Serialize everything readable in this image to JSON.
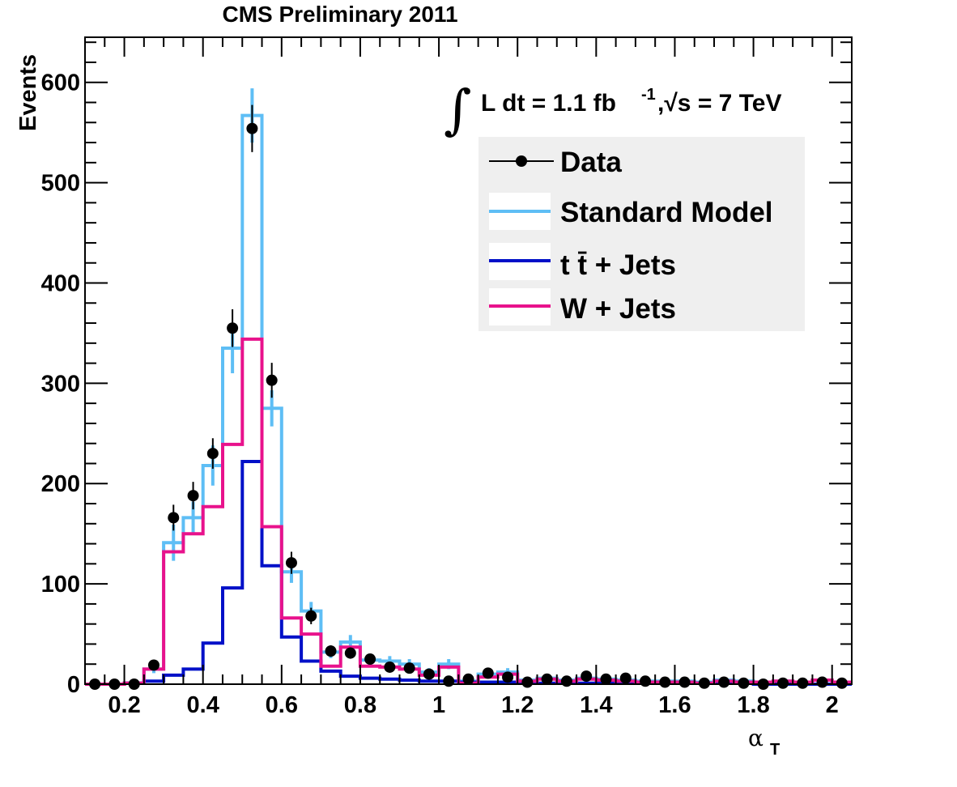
{
  "chart_data": {
    "type": "histogram",
    "title": "CMS Preliminary 2011",
    "xlabel": "α",
    "xlabel_sub": "T",
    "ylabel": "Events",
    "xlim": [
      0.1,
      2.05
    ],
    "ylim": [
      0,
      645
    ],
    "x_ticks": [
      "0.2",
      "0.4",
      "0.6",
      "0.8",
      "1",
      "1.2",
      "1.4",
      "1.6",
      "1.8",
      "2"
    ],
    "y_ticks": [
      "0",
      "100",
      "200",
      "300",
      "400",
      "500",
      "600"
    ],
    "bin_width": 0.05,
    "bin_centers": [
      0.125,
      0.175,
      0.225,
      0.275,
      0.325,
      0.375,
      0.425,
      0.475,
      0.525,
      0.575,
      0.625,
      0.675,
      0.725,
      0.775,
      0.825,
      0.875,
      0.925,
      0.975,
      1.025,
      1.075,
      1.125,
      1.175,
      1.225,
      1.275,
      1.325,
      1.375,
      1.425,
      1.475,
      1.525,
      1.575,
      1.625,
      1.675,
      1.725,
      1.775,
      1.825,
      1.875,
      1.925,
      1.975,
      2.025
    ],
    "annotation": {
      "lumi_text": "L dt = 1.1 fb",
      "lumi_sup": "-1",
      "sqrt_text": ",√s = 7 TeV",
      "integral_symbol": "∫"
    },
    "legend": {
      "placement": "top-right",
      "background": "#efefef",
      "entries": [
        "Data",
        "Standard Model",
        "t t̄ + Jets",
        "W + Jets"
      ]
    },
    "series": [
      {
        "name": "Standard Model",
        "style": "step-with-error",
        "color": "#5ebef5",
        "values": [
          0,
          0,
          1,
          15,
          141,
          166,
          218,
          335,
          567,
          275,
          112,
          73,
          32,
          42,
          24,
          23,
          20,
          12,
          20,
          3,
          10,
          12,
          4,
          6,
          4,
          6,
          5,
          4,
          3,
          3,
          3,
          2,
          4,
          3,
          2,
          3,
          2,
          4,
          2
        ],
        "errors": [
          0,
          0,
          1,
          4,
          18,
          16,
          20,
          25,
          27,
          18,
          11,
          9,
          6,
          7,
          5,
          5,
          5,
          4,
          5,
          2,
          3,
          4,
          2,
          2,
          2,
          2,
          2,
          2,
          1,
          1,
          1,
          1,
          2,
          1,
          1,
          1,
          1,
          2,
          1
        ]
      },
      {
        "name": "t t̄ + Jets",
        "style": "step",
        "color": "#0010c8",
        "values": [
          0,
          0,
          1,
          3,
          9,
          15,
          41,
          96,
          222,
          118,
          47,
          23,
          13,
          8,
          6,
          5,
          4,
          3,
          3,
          2,
          2,
          2,
          1,
          1,
          1,
          1,
          1,
          1,
          1,
          1,
          1,
          1,
          1,
          1,
          0,
          0,
          0,
          0,
          0
        ]
      },
      {
        "name": "W + Jets",
        "style": "step",
        "color": "#e8128c",
        "values": [
          0,
          0,
          1,
          15,
          132,
          150,
          177,
          239,
          344,
          157,
          66,
          50,
          18,
          37,
          18,
          17,
          15,
          9,
          17,
          1,
          7,
          10,
          3,
          5,
          3,
          5,
          4,
          3,
          2,
          2,
          2,
          1,
          3,
          2,
          2,
          3,
          2,
          4,
          2
        ]
      },
      {
        "name": "Data",
        "style": "points",
        "color": "#000000",
        "values": [
          0,
          0,
          0,
          19,
          166,
          188,
          230,
          355,
          554,
          303,
          121,
          68,
          33,
          31,
          25,
          17,
          16,
          10,
          3,
          5,
          11,
          7,
          2,
          5,
          3,
          8,
          5,
          6,
          3,
          2,
          2,
          1,
          2,
          1,
          0,
          1,
          1,
          2,
          1
        ],
        "errors": [
          0,
          0,
          0,
          4.4,
          12.9,
          13.7,
          15.2,
          18.8,
          23.5,
          17.4,
          11,
          8.2,
          5.7,
          5.6,
          5,
          4.1,
          4,
          3.2,
          1.7,
          2.2,
          3.3,
          2.6,
          1.4,
          2.2,
          1.7,
          2.8,
          2.2,
          2.4,
          1.7,
          1.4,
          1.4,
          1,
          1.4,
          1,
          0,
          1,
          1,
          1.4,
          1
        ]
      }
    ]
  }
}
